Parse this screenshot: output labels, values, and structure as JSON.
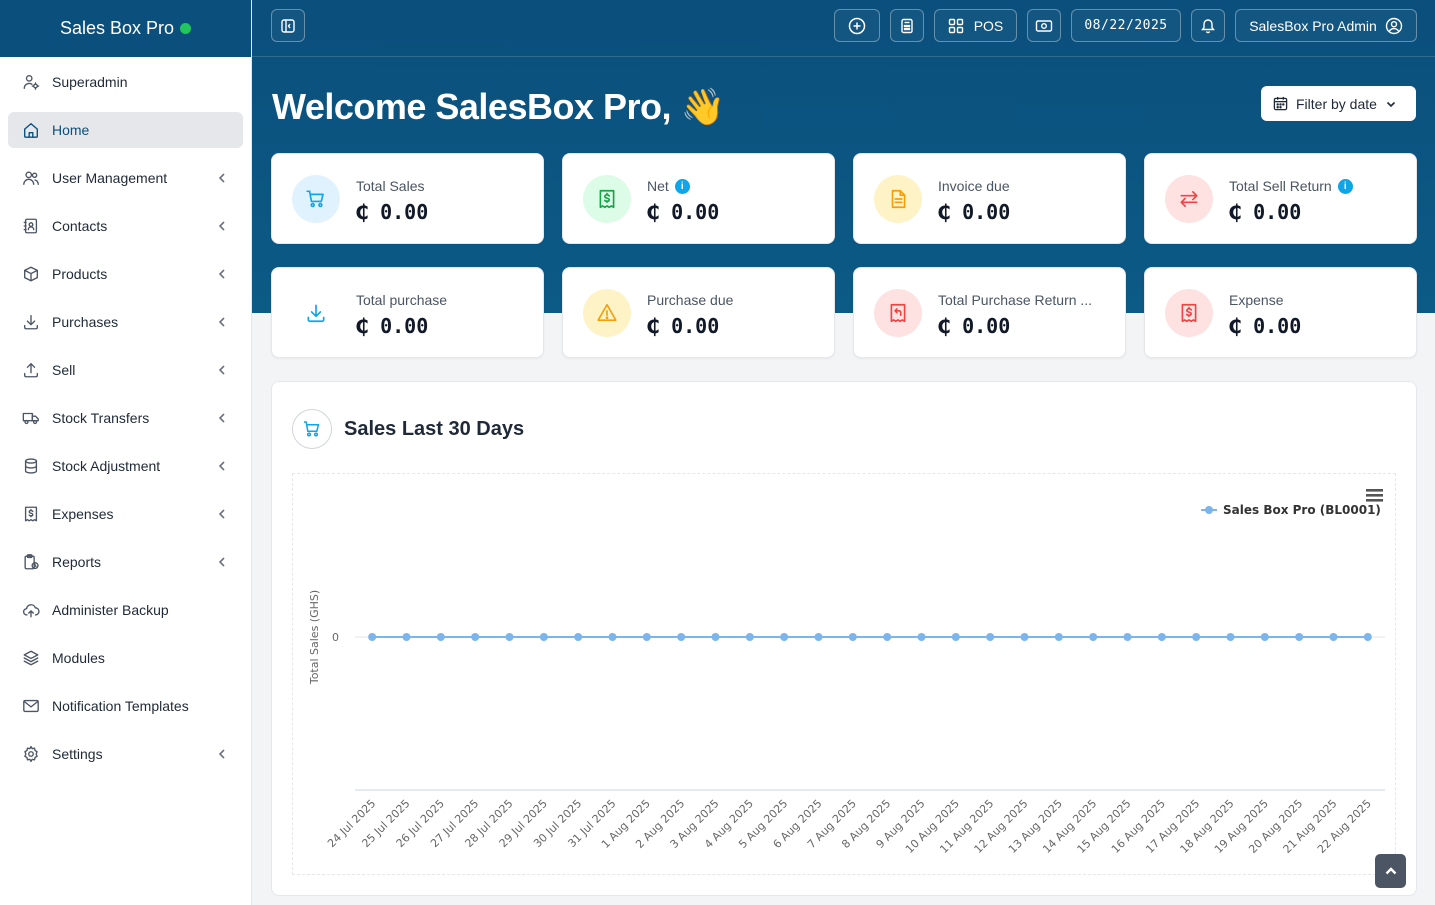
{
  "brand": {
    "name": "Sales Box Pro",
    "status_color": "#22c55e"
  },
  "sidebar": {
    "items": [
      {
        "label": "Superadmin",
        "icon": "user-gear-icon",
        "has_submenu": false,
        "active": false
      },
      {
        "label": "Home",
        "icon": "home-icon",
        "has_submenu": false,
        "active": true
      },
      {
        "label": "User Management",
        "icon": "users-icon",
        "has_submenu": true,
        "active": false
      },
      {
        "label": "Contacts",
        "icon": "contacts-icon",
        "has_submenu": true,
        "active": false
      },
      {
        "label": "Products",
        "icon": "box-icon",
        "has_submenu": true,
        "active": false
      },
      {
        "label": "Purchases",
        "icon": "download-icon",
        "has_submenu": true,
        "active": false
      },
      {
        "label": "Sell",
        "icon": "upload-icon",
        "has_submenu": true,
        "active": false
      },
      {
        "label": "Stock Transfers",
        "icon": "truck-icon",
        "has_submenu": true,
        "active": false
      },
      {
        "label": "Stock Adjustment",
        "icon": "database-icon",
        "has_submenu": true,
        "active": false
      },
      {
        "label": "Expenses",
        "icon": "receipt-dollar-icon",
        "has_submenu": true,
        "active": false
      },
      {
        "label": "Reports",
        "icon": "clipboard-clock-icon",
        "has_submenu": true,
        "active": false
      },
      {
        "label": "Administer Backup",
        "icon": "cloud-upload-icon",
        "has_submenu": false,
        "active": false
      },
      {
        "label": "Modules",
        "icon": "stack-icon",
        "has_submenu": false,
        "active": false
      },
      {
        "label": "Notification Templates",
        "icon": "envelope-icon",
        "has_submenu": false,
        "active": false
      },
      {
        "label": "Settings",
        "icon": "gear-icon",
        "has_submenu": true,
        "active": false
      }
    ]
  },
  "topbar": {
    "pos_label": "POS",
    "date": "08/22/2025",
    "user_label": "SalesBox Pro Admin"
  },
  "main": {
    "welcome": "Welcome SalesBox Pro, 👋",
    "filter_label": "Filter by date"
  },
  "cards": [
    {
      "label": "Total Sales",
      "value": "₵ 0.00",
      "icon": "cart-icon",
      "bg": "#e0f2fe",
      "fg": "#0ea5e9",
      "info": false
    },
    {
      "label": "Net",
      "value": "₵ 0.00",
      "icon": "receipt-dollar-icon",
      "bg": "#dcfce7",
      "fg": "#16a34a",
      "info": true
    },
    {
      "label": "Invoice due",
      "value": "₵ 0.00",
      "icon": "document-icon",
      "bg": "#fef3c7",
      "fg": "#f59e0b",
      "info": false
    },
    {
      "label": "Total Sell Return",
      "value": "₵ 0.00",
      "icon": "arrows-exchange-icon",
      "bg": "#fee2e2",
      "fg": "#ef4444",
      "info": true
    },
    {
      "label": "Total purchase",
      "value": "₵ 0.00",
      "icon": "download-icon",
      "bg": "#ffffff",
      "fg": "#0ea5e9",
      "info": false
    },
    {
      "label": "Purchase due",
      "value": "₵ 0.00",
      "icon": "warning-icon",
      "bg": "#fef3c7",
      "fg": "#f59e0b",
      "info": false
    },
    {
      "label": "Total Purchase Return ...",
      "value": "₵ 0.00",
      "icon": "receipt-return-icon",
      "bg": "#fee2e2",
      "fg": "#ef4444",
      "info": false
    },
    {
      "label": "Expense",
      "value": "₵ 0.00",
      "icon": "receipt-dollar-icon",
      "bg": "#fee2e2",
      "fg": "#ef4444",
      "info": false
    }
  ],
  "panel": {
    "title": "Sales Last 30 Days"
  },
  "chart_data": {
    "type": "line",
    "title": "",
    "ylabel": "Total Sales (GHS)",
    "xlabel": "",
    "legend_position": "top-right",
    "categories": [
      "24 Jul 2025",
      "25 Jul 2025",
      "26 Jul 2025",
      "27 Jul 2025",
      "28 Jul 2025",
      "29 Jul 2025",
      "30 Jul 2025",
      "31 Jul 2025",
      "1 Aug 2025",
      "2 Aug 2025",
      "3 Aug 2025",
      "4 Aug 2025",
      "5 Aug 2025",
      "6 Aug 2025",
      "7 Aug 2025",
      "8 Aug 2025",
      "9 Aug 2025",
      "10 Aug 2025",
      "11 Aug 2025",
      "12 Aug 2025",
      "13 Aug 2025",
      "14 Aug 2025",
      "15 Aug 2025",
      "16 Aug 2025",
      "17 Aug 2025",
      "18 Aug 2025",
      "19 Aug 2025",
      "20 Aug 2025",
      "21 Aug 2025",
      "22 Aug 2025"
    ],
    "series": [
      {
        "name": "Sales Box Pro (BL0001)",
        "color": "#7cb5ec",
        "values": [
          0,
          0,
          0,
          0,
          0,
          0,
          0,
          0,
          0,
          0,
          0,
          0,
          0,
          0,
          0,
          0,
          0,
          0,
          0,
          0,
          0,
          0,
          0,
          0,
          0,
          0,
          0,
          0,
          0,
          0
        ]
      }
    ],
    "y_ticks": [
      "0"
    ],
    "grid": true
  }
}
